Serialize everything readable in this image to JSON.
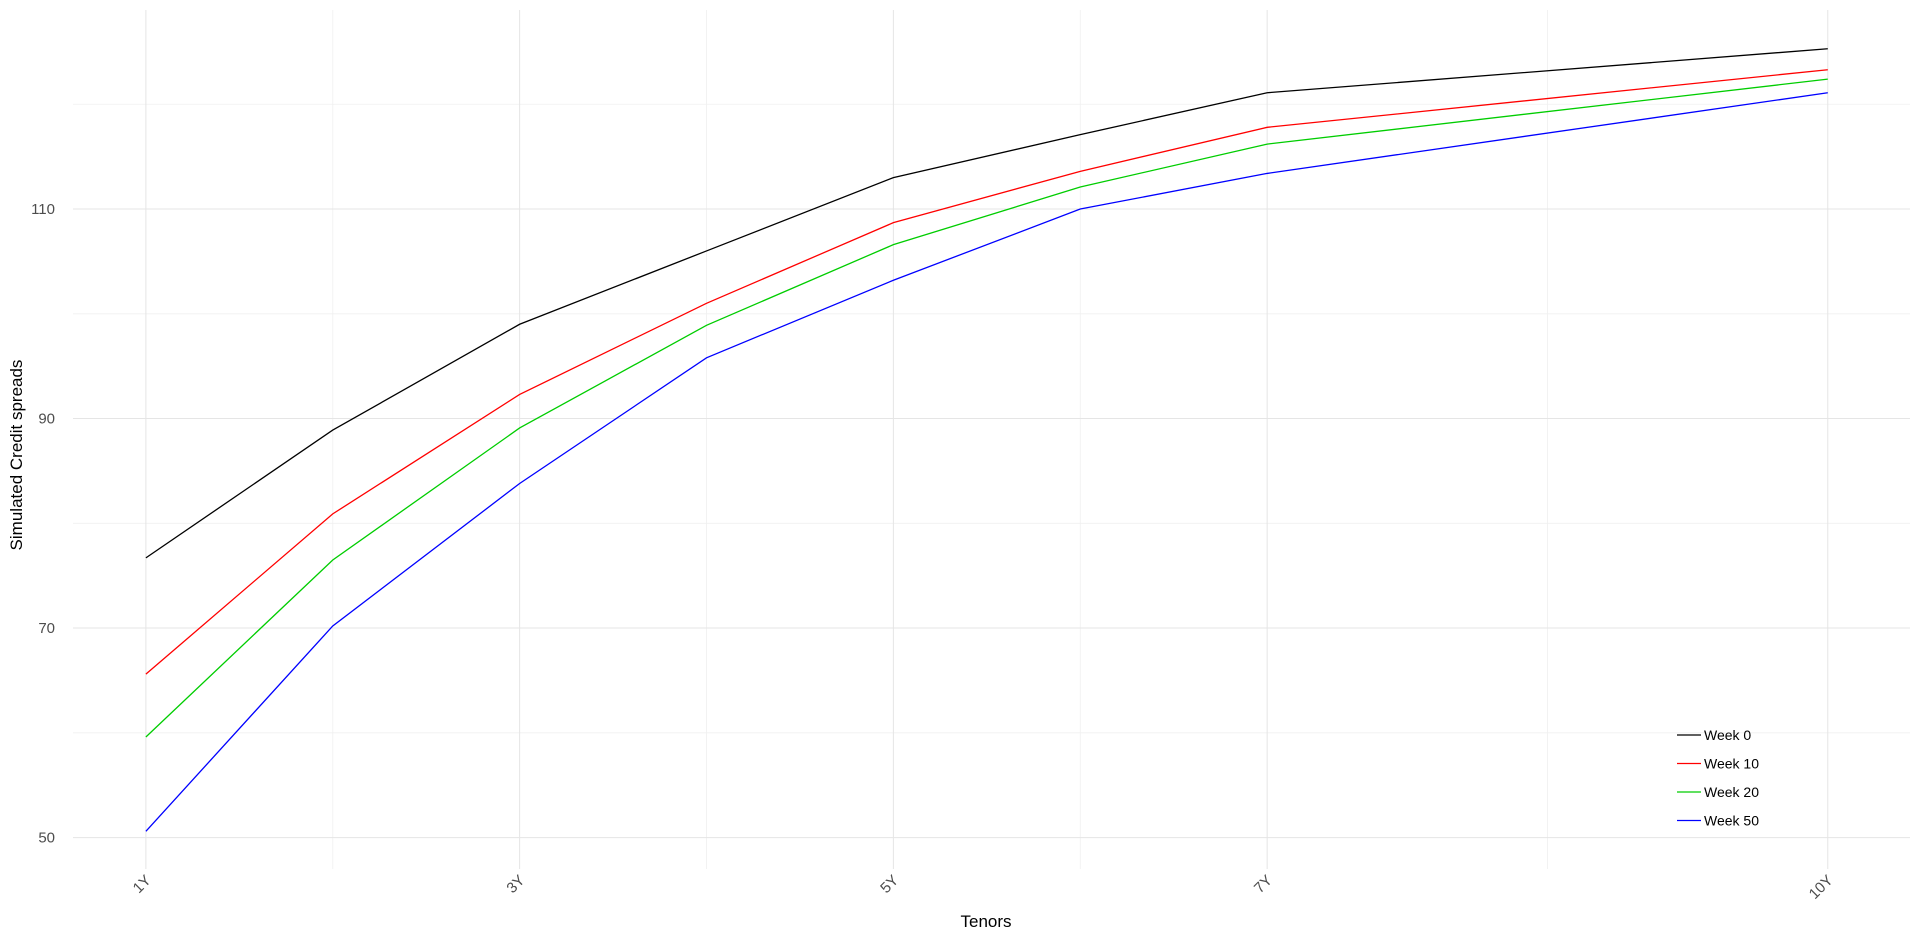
{
  "chart_data": {
    "type": "line",
    "x_label": "Tenors",
    "y_label": "Simulated Credit spreads",
    "x": [
      1,
      2,
      3,
      4,
      5,
      6,
      7,
      10
    ],
    "series": [
      {
        "name": "Week 0",
        "color": "#000000",
        "values": [
          76.7,
          88.9,
          99.0,
          106.0,
          113.0,
          117.1,
          121.1,
          125.3
        ]
      },
      {
        "name": "Week 10",
        "color": "#ff0000",
        "values": [
          65.6,
          80.9,
          92.3,
          101.0,
          108.7,
          113.6,
          117.8,
          123.3
        ]
      },
      {
        "name": "Week 20",
        "color": "#00cd00",
        "values": [
          59.6,
          76.5,
          89.1,
          98.9,
          106.6,
          112.1,
          116.2,
          122.4
        ]
      },
      {
        "name": "Week 50",
        "color": "#0000ff",
        "values": [
          50.6,
          70.2,
          83.8,
          95.8,
          103.2,
          110.0,
          113.4,
          121.1
        ]
      }
    ],
    "xlim": [
      0.61,
      10.44
    ],
    "xticks": [
      {
        "value": 1,
        "label": "1Y"
      },
      {
        "value": 3,
        "label": "3Y"
      },
      {
        "value": 5,
        "label": "5Y"
      },
      {
        "value": 7,
        "label": "7Y"
      },
      {
        "value": 10,
        "label": "10Y"
      }
    ],
    "xminor": [
      2,
      4,
      6,
      8.5
    ],
    "ylim": [
      47,
      129
    ],
    "yticks": [
      50,
      70,
      90,
      110
    ],
    "yminor": [
      60,
      80,
      100,
      120
    ],
    "grid": true,
    "legend": "bottom-right"
  }
}
